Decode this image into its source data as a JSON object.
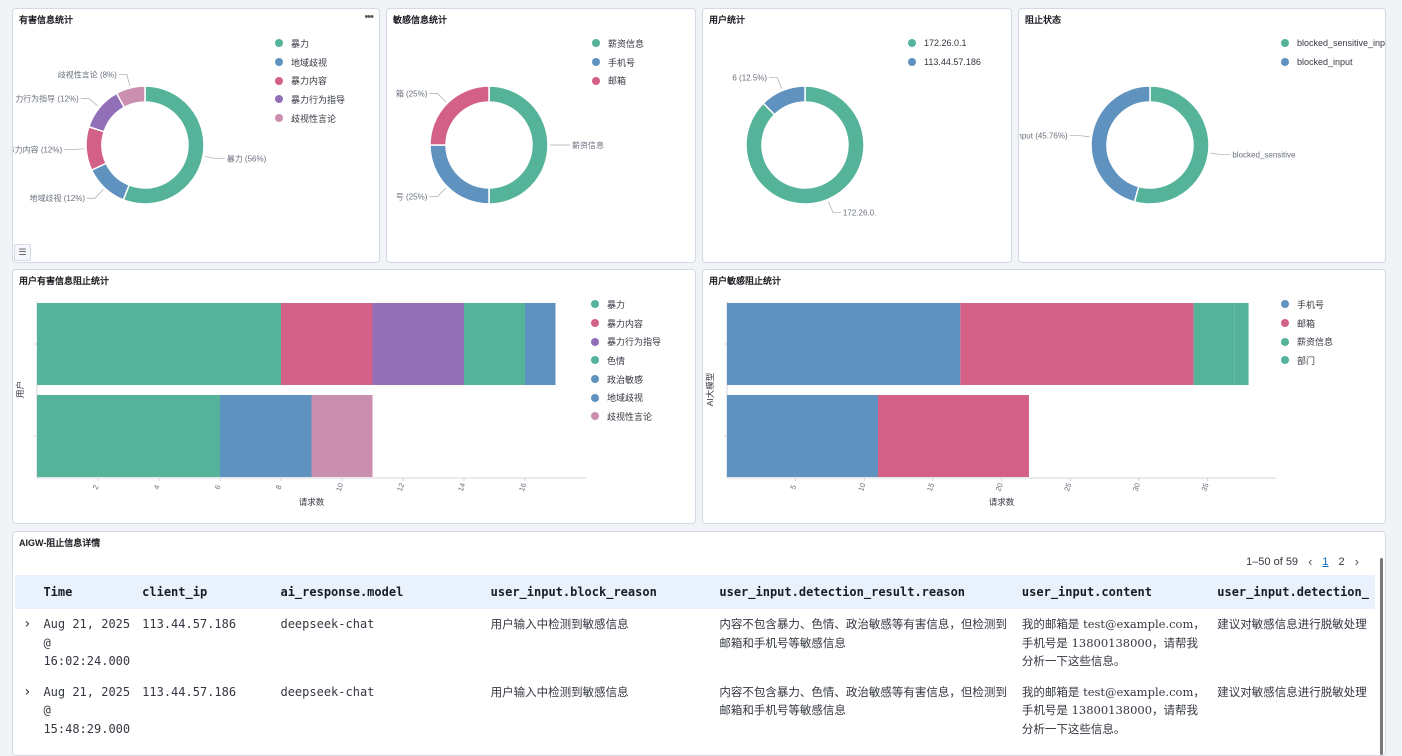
{
  "colors": {
    "green": "#54b399",
    "blue": "#6092c0",
    "pink": "#d36086",
    "purple": "#9170b8",
    "lightpink": "#ca8eae"
  },
  "panels": {
    "harmful": {
      "title": "有害信息统计",
      "legend": [
        {
          "label": "暴力",
          "color": "#54b399"
        },
        {
          "label": "地域歧视",
          "color": "#6092c0"
        },
        {
          "label": "暴力内容",
          "color": "#d36086"
        },
        {
          "label": "暴力行为指导",
          "color": "#9170b8"
        },
        {
          "label": "歧视性言论",
          "color": "#ca8eae"
        }
      ],
      "slices": [
        {
          "label": "暴力 (56%)",
          "value": 56,
          "color": "#54b399"
        },
        {
          "label": "地域歧视 (12%)",
          "value": 12,
          "color": "#6092c0"
        },
        {
          "label": "暴力内容 (12%)",
          "value": 12,
          "color": "#d36086"
        },
        {
          "label": "力行为指导 (12%)",
          "value": 12,
          "color": "#9170b8"
        },
        {
          "label": "歧视性言论 (8%)",
          "value": 8,
          "color": "#ca8eae"
        }
      ]
    },
    "sensitive": {
      "title": "敏感信息统计",
      "legend": [
        {
          "label": "薪资信息",
          "color": "#54b399"
        },
        {
          "label": "手机号",
          "color": "#6092c0"
        },
        {
          "label": "邮箱",
          "color": "#d36086"
        }
      ],
      "slices": [
        {
          "label": "薪资信息",
          "value": 50,
          "color": "#54b399"
        },
        {
          "label": "号 (25%)",
          "value": 25,
          "color": "#6092c0"
        },
        {
          "label": "箱 (25%)",
          "value": 25,
          "color": "#d36086"
        }
      ]
    },
    "users": {
      "title": "用户统计",
      "legend": [
        {
          "label": "172.26.0.1",
          "color": "#54b399"
        },
        {
          "label": "113.44.57.186",
          "color": "#6092c0"
        }
      ],
      "slices": [
        {
          "label": "172.26.0.",
          "value": 87.5,
          "color": "#54b399"
        },
        {
          "label": "6 (12.5%)",
          "value": 12.5,
          "color": "#6092c0"
        }
      ]
    },
    "block": {
      "title": "阻止状态",
      "legend": [
        {
          "label": "blocked_sensitive_input",
          "color": "#54b399"
        },
        {
          "label": "blocked_input",
          "color": "#6092c0"
        }
      ],
      "slices": [
        {
          "label": "blocked_sensitive",
          "value": 54.24,
          "color": "#54b399"
        },
        {
          "label": "d_input (45.76%)",
          "value": 45.76,
          "color": "#6092c0"
        }
      ]
    },
    "userHarmful": {
      "title": "用户有害信息阻止统计",
      "legend": [
        {
          "label": "暴力",
          "color": "#54b399"
        },
        {
          "label": "暴力内容",
          "color": "#d36086"
        },
        {
          "label": "暴力行为指导",
          "color": "#9170b8"
        },
        {
          "label": "色情",
          "color": "#54b399"
        },
        {
          "label": "政治敏感",
          "color": "#6092c0"
        },
        {
          "label": "地域歧视",
          "color": "#6092c0"
        },
        {
          "label": "歧视性言论",
          "color": "#ca8eae"
        }
      ],
      "ylabel": "用户",
      "xlabel": "请求数",
      "ticks": [
        2,
        4,
        6,
        8,
        10,
        12,
        14,
        16
      ]
    },
    "userSensitive": {
      "title": "用户敏感阻止统计",
      "legend": [
        {
          "label": "手机号",
          "color": "#6092c0"
        },
        {
          "label": "邮箱",
          "color": "#d36086"
        },
        {
          "label": "薪资信息",
          "color": "#54b399"
        },
        {
          "label": "部门",
          "color": "#54b399"
        }
      ],
      "ylabel": "AI大模型",
      "xlabel": "请求数",
      "ticks": [
        5,
        10,
        15,
        20,
        25,
        30,
        35
      ]
    },
    "details": {
      "title": "AIGW-阻止信息详情",
      "pagination": {
        "range": "1–50 of 59",
        "pages": [
          "1",
          "2"
        ]
      },
      "columns": [
        "Time",
        "client_ip",
        "ai_response.model",
        "user_input.block_reason",
        "user_input.detection_result.reason",
        "user_input.content",
        "user_input.detection_"
      ],
      "rows": [
        {
          "time": "Aug 21, 2025 @ 16:02:24.000",
          "ip": "113.44.57.186",
          "model": "deepseek-chat",
          "block_reason": "用户输入中检测到敏感信息",
          "detect_reason": "内容不包含暴力、色情、政治敏感等有害信息，但检测到邮箱和手机号等敏感信息",
          "content": "我的邮箱是 test@example.com，手机号是 13800138000，请帮我分析一下这些信息。",
          "detection": "建议对敏感信息进行脱敏处理"
        },
        {
          "time": "Aug 21, 2025 @ 15:48:29.000",
          "ip": "113.44.57.186",
          "model": "deepseek-chat",
          "block_reason": "用户输入中检测到敏感信息",
          "detect_reason": "内容不包含暴力、色情、政治敏感等有害信息，但检测到邮箱和手机号等敏感信息",
          "content": "我的邮箱是 test@example.com，手机号是 13800138000，请帮我分析一下这些信息。",
          "detection": "建议对敏感信息进行脱敏处理"
        }
      ]
    }
  },
  "chart_data": [
    {
      "type": "pie",
      "title": "有害信息统计",
      "categories": [
        "暴力",
        "地域歧视",
        "暴力内容",
        "暴力行为指导",
        "歧视性言论"
      ],
      "values": [
        56,
        12,
        12,
        12,
        8
      ]
    },
    {
      "type": "pie",
      "title": "敏感信息统计",
      "categories": [
        "薪资信息",
        "手机号",
        "邮箱"
      ],
      "values": [
        50,
        25,
        25
      ]
    },
    {
      "type": "pie",
      "title": "用户统计",
      "categories": [
        "172.26.0.1",
        "113.44.57.186"
      ],
      "values": [
        87.5,
        12.5
      ]
    },
    {
      "type": "pie",
      "title": "阻止状态",
      "categories": [
        "blocked_sensitive_input",
        "blocked_input"
      ],
      "values": [
        54.24,
        45.76
      ]
    },
    {
      "type": "bar",
      "orientation": "horizontal",
      "stacked": true,
      "title": "用户有害信息阻止统计",
      "xlabel": "请求数",
      "ylabel": "用户",
      "xlim": [
        0,
        18
      ],
      "rows": [
        {
          "segments": [
            {
              "name": "暴力",
              "value": 8,
              "color": "#54b399"
            },
            {
              "name": "暴力内容",
              "value": 3,
              "color": "#d36086"
            },
            {
              "name": "暴力行为指导",
              "value": 3,
              "color": "#9170b8"
            },
            {
              "name": "色情",
              "value": 2,
              "color": "#54b399"
            },
            {
              "name": "政治敏感",
              "value": 1,
              "color": "#6092c0"
            }
          ]
        },
        {
          "segments": [
            {
              "name": "暴力",
              "value": 6,
              "color": "#54b399"
            },
            {
              "name": "地域歧视",
              "value": 3,
              "color": "#6092c0"
            },
            {
              "name": "歧视性言论",
              "value": 2,
              "color": "#ca8eae"
            }
          ]
        }
      ]
    },
    {
      "type": "bar",
      "orientation": "horizontal",
      "stacked": true,
      "title": "用户敏感阻止统计",
      "xlabel": "请求数",
      "ylabel": "AI大模型",
      "xlim": [
        0,
        40
      ],
      "rows": [
        {
          "segments": [
            {
              "name": "手机号",
              "value": 17,
              "color": "#6092c0"
            },
            {
              "name": "邮箱",
              "value": 17,
              "color": "#d36086"
            },
            {
              "name": "薪资信息",
              "value": 3,
              "color": "#54b399"
            },
            {
              "name": "部门",
              "value": 1,
              "color": "#54b399"
            }
          ]
        },
        {
          "segments": [
            {
              "name": "手机号",
              "value": 11,
              "color": "#6092c0"
            },
            {
              "name": "邮箱",
              "value": 11,
              "color": "#d36086"
            }
          ]
        }
      ]
    }
  ]
}
